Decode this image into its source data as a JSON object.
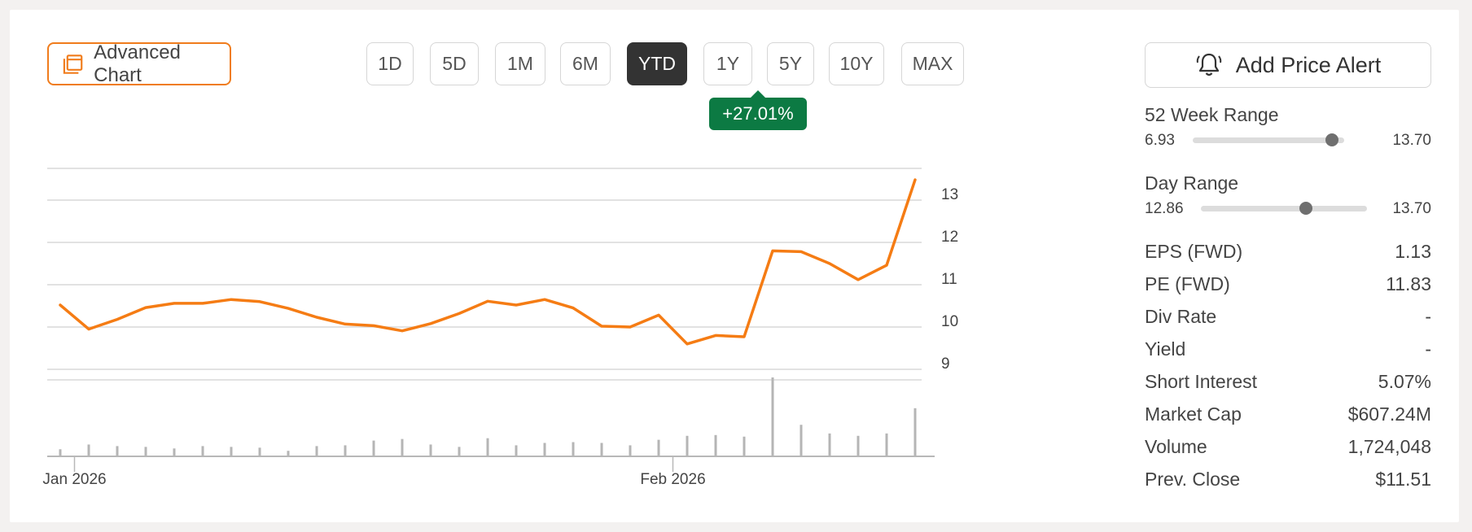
{
  "toolbar": {
    "advanced_chart_label": "Advanced Chart",
    "ranges": [
      "1D",
      "5D",
      "1M",
      "6M",
      "YTD",
      "1Y",
      "5Y",
      "10Y",
      "MAX"
    ],
    "active_range": "YTD",
    "change": "+27.01%",
    "alert_label": "Add Price Alert"
  },
  "colors": {
    "accent": "#f07c1c",
    "line": "#f57c14",
    "positive": "#0c7a43",
    "active_tab": "#333333",
    "volume": "#b5b5b5",
    "grid": "#d9d9d9"
  },
  "chart_data": {
    "type": "line",
    "y_ticks": [
      "13",
      "12",
      "11",
      "10",
      "9"
    ],
    "ylim": [
      8.75,
      13.75
    ],
    "x_labels": [
      "Jan 2026",
      "Feb 2026"
    ],
    "x_label_index": [
      0.5,
      21.5
    ],
    "grid": true,
    "price": [
      10.52,
      9.95,
      10.18,
      10.46,
      10.56,
      10.56,
      10.65,
      10.6,
      10.44,
      10.23,
      10.07,
      10.03,
      9.91,
      10.08,
      10.32,
      10.61,
      10.52,
      10.65,
      10.45,
      10.02,
      10.0,
      10.28,
      9.6,
      9.8,
      9.77,
      11.8,
      11.78,
      11.5,
      11.12,
      11.46,
      13.48
    ],
    "volume": [
      0.09,
      0.15,
      0.13,
      0.12,
      0.1,
      0.13,
      0.12,
      0.11,
      0.07,
      0.13,
      0.14,
      0.2,
      0.22,
      0.15,
      0.12,
      0.23,
      0.14,
      0.17,
      0.18,
      0.17,
      0.14,
      0.21,
      0.26,
      0.27,
      0.25,
      1.0,
      0.4,
      0.29,
      0.26,
      0.29,
      0.61
    ]
  },
  "stats": {
    "week52": {
      "label": "52 Week Range",
      "low": "6.93",
      "high": "13.70",
      "position": 0.92
    },
    "day": {
      "label": "Day Range",
      "low": "12.86",
      "high": "13.70",
      "position": 0.63
    },
    "rows": [
      {
        "label": "EPS (FWD)",
        "value": "1.13"
      },
      {
        "label": "PE (FWD)",
        "value": "11.83"
      },
      {
        "label": "Div Rate",
        "value": "-"
      },
      {
        "label": "Yield",
        "value": "-"
      },
      {
        "label": "Short Interest",
        "value": "5.07%"
      },
      {
        "label": "Market Cap",
        "value": "$607.24M"
      },
      {
        "label": "Volume",
        "value": "1,724,048"
      },
      {
        "label": "Prev. Close",
        "value": "$11.51"
      }
    ]
  }
}
